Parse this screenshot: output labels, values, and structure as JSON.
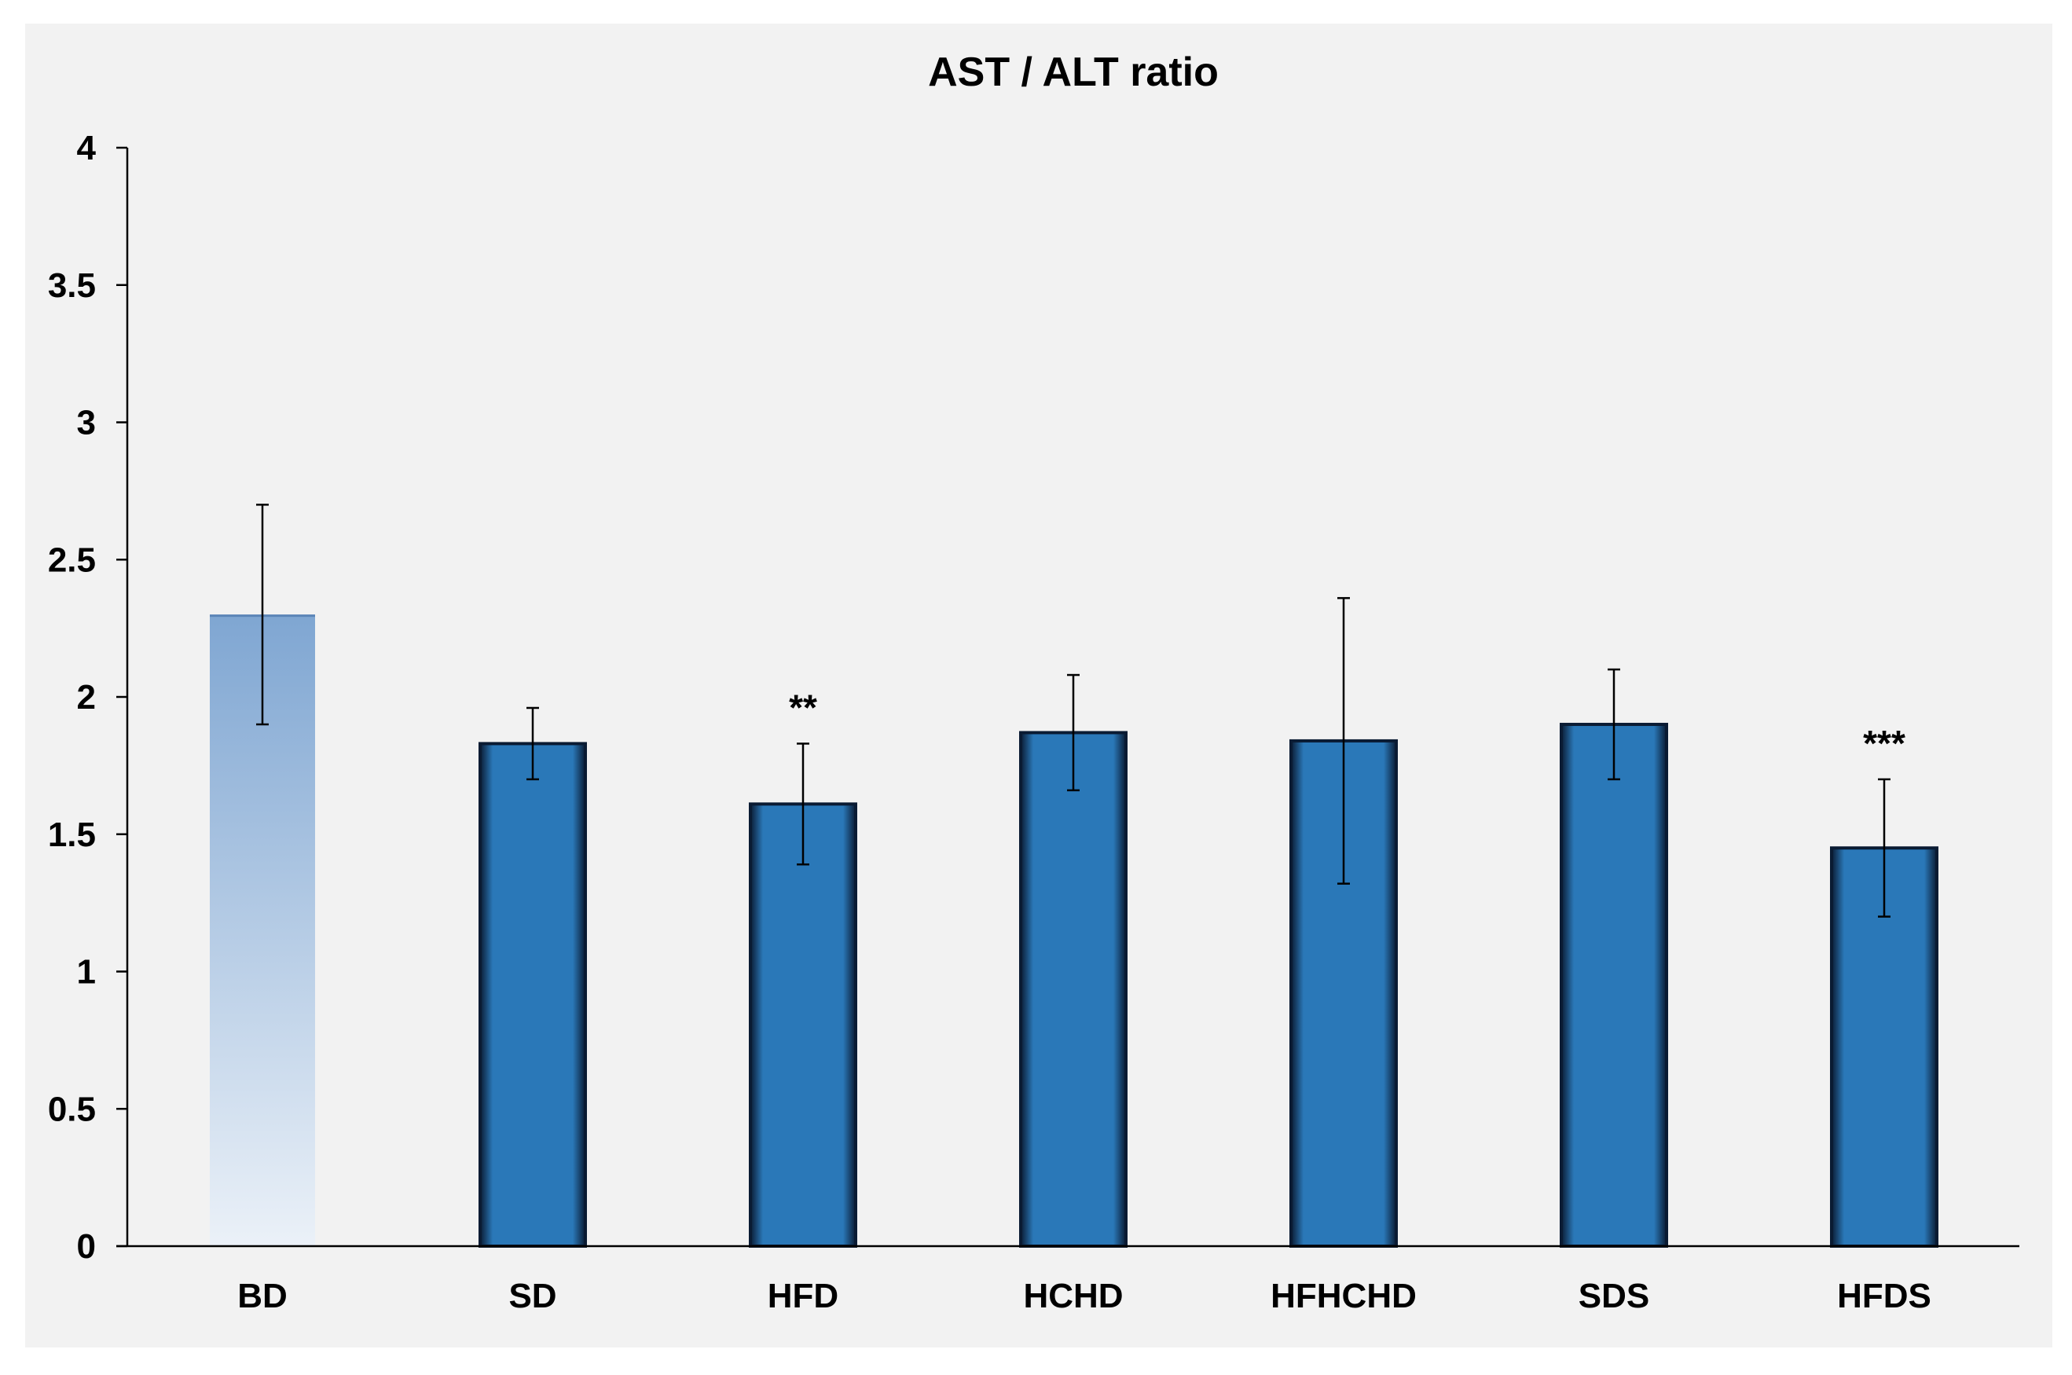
{
  "chart_data": {
    "type": "bar",
    "title": "AST / ALT ratio",
    "xlabel": "",
    "ylabel": "",
    "categories": [
      "BD",
      "SD",
      "HFD",
      "HCHD",
      "HFHCHD",
      "SDS",
      "HFDS"
    ],
    "values": [
      2.3,
      1.83,
      1.61,
      1.87,
      1.84,
      1.9,
      1.45
    ],
    "error": [
      0.4,
      0.13,
      0.22,
      0.21,
      0.52,
      0.2,
      0.25
    ],
    "annotations": [
      "",
      "",
      "**",
      "",
      "",
      "",
      "***"
    ],
    "ylim": [
      0,
      4
    ],
    "yticks": [
      0,
      0.5,
      1,
      1.5,
      2,
      2.5,
      3,
      3.5,
      4
    ],
    "ytick_labels": [
      "0",
      "0.5",
      "1",
      "1.5",
      "2",
      "2.5",
      "3",
      "3.5",
      "4"
    ],
    "grid": false,
    "legend": "none",
    "colors": {
      "bar_fill": "#2a78b8",
      "bar_edge": "#0a1b33",
      "first_bar_top": "#7fa6d2",
      "first_bar_bottom": "#ebf1f8",
      "panel_background": "#f2f2f2",
      "axis": "#000000"
    }
  }
}
